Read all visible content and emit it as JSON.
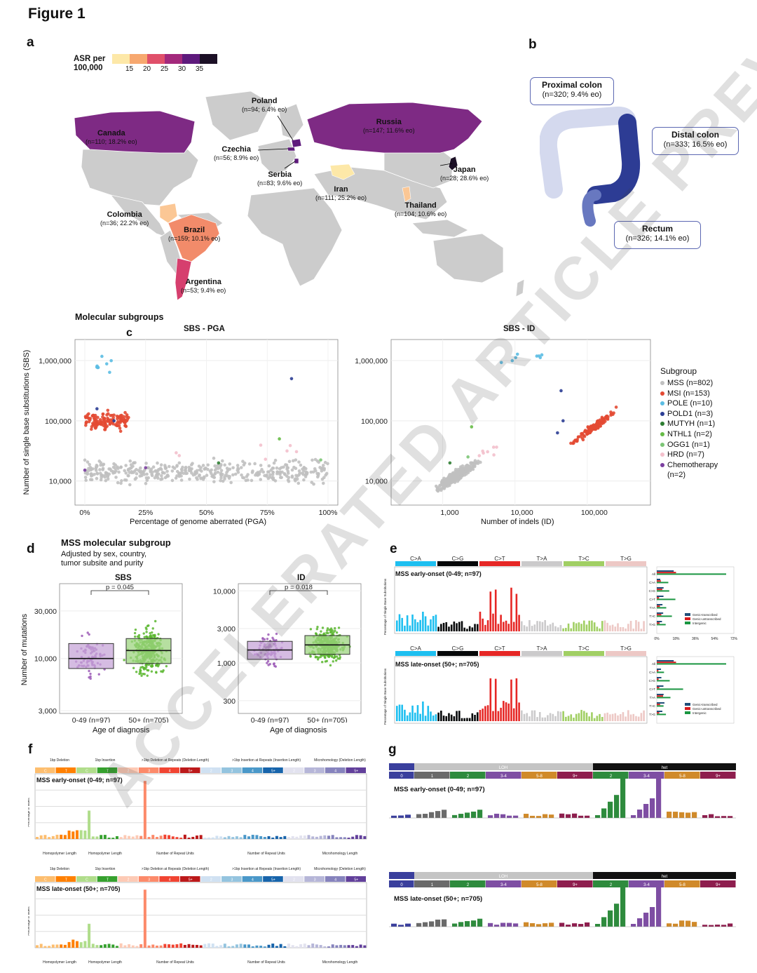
{
  "figure_title": "Figure 1",
  "panels": {
    "a": "a",
    "b": "b",
    "c": "c",
    "d": "d",
    "e": "e",
    "f": "f",
    "g": "g"
  },
  "colors": {
    "map_default": "#cccccc",
    "asr_scale": [
      "#fde8a8",
      "#f7a86f",
      "#e0506a",
      "#a3297c",
      "#5e1a7c",
      "#1c1026"
    ],
    "mss": "#c0c0c0",
    "msi": "#e34a33",
    "pole": "#5bbde3",
    "pold1": "#2c3e95",
    "mutyh": "#2e7d32",
    "nthl1": "#66bb46",
    "ogg1": "#7cc576",
    "hrd": "#f3c0cc",
    "chemo": "#7b3fa0"
  },
  "map_legend": {
    "title_line1": "ASR per",
    "title_line2": "100,000",
    "ticks": [
      "15",
      "20",
      "25",
      "30",
      "35"
    ]
  },
  "countries": [
    {
      "name": "Canada",
      "detail": "(n=110; 18.2% eo)"
    },
    {
      "name": "Poland",
      "detail": "(n=94; 6.4% eo)"
    },
    {
      "name": "Russia",
      "detail": "(n=147; 11.6% eo)"
    },
    {
      "name": "Czechia",
      "detail": "(n=56; 8.9% eo)"
    },
    {
      "name": "Serbia",
      "detail": "(n=83; 9.6% eo)"
    },
    {
      "name": "Japan",
      "detail": "(n=28; 28.6% eo)"
    },
    {
      "name": "Iran",
      "detail": "(n=111; 25.2% eo)"
    },
    {
      "name": "Thailand",
      "detail": "(n=104; 10.6% eo)"
    },
    {
      "name": "Colombia",
      "detail": "(n=36; 22.2% eo)"
    },
    {
      "name": "Brazil",
      "detail": "(n=159; 10.1% eo)"
    },
    {
      "name": "Argentina",
      "detail": "(n=53; 9.4% eo)"
    }
  ],
  "sites": [
    {
      "name": "Proximal colon",
      "detail": "(n=320; 9.4% eo)"
    },
    {
      "name": "Distal colon",
      "detail": "(n=333; 16.5% eo)"
    },
    {
      "name": "Rectum",
      "detail": "(n=326; 14.1% eo)"
    }
  ],
  "panel_c": {
    "heading": "Molecular subgroups",
    "left_title": "SBS - PGA",
    "right_title": "SBS - ID",
    "ylabel": "Number of single base substitutions (SBS)",
    "left_xlabel": "Percentage of genome aberrated (PGA)",
    "right_xlabel": "Number of indels (ID)",
    "y_ticks": [
      "1,000,000",
      "100,000",
      "10,000"
    ],
    "left_x_ticks": [
      "0%",
      "25%",
      "50%",
      "75%",
      "100%"
    ],
    "right_x_ticks": [
      "1,000",
      "10,000",
      "100,000"
    ],
    "legend_title": "Subgroup",
    "legend": [
      {
        "label": "MSS (n=802)",
        "color": "#c0c0c0"
      },
      {
        "label": "MSI (n=153)",
        "color": "#e34a33"
      },
      {
        "label": "POLE (n=10)",
        "color": "#5bbde3"
      },
      {
        "label": "POLD1 (n=3)",
        "color": "#2c3e95"
      },
      {
        "label": "MUTYH (n=1)",
        "color": "#2e7d32"
      },
      {
        "label": "NTHL1 (n=2)",
        "color": "#66bb46"
      },
      {
        "label": "OGG1 (n=1)",
        "color": "#7cc576"
      },
      {
        "label": "HRD (n=7)",
        "color": "#f3c0cc"
      },
      {
        "label": "Chemotherapy (n=2)",
        "color": "#7b3fa0"
      }
    ]
  },
  "panel_d": {
    "title": "MSS molecular subgroup",
    "subtitle_1": "Adjusted by sex, country,",
    "subtitle_2": "tumor subsite and purity",
    "ylabel": "Number of mutations",
    "xlabel": "Age of diagnosis",
    "sbs": {
      "title": "SBS",
      "p": "p = 0.045",
      "y_ticks": [
        "30,000",
        "10,000",
        "3,000"
      ],
      "groups": [
        "0-49 (n=97)",
        "50+ (n=705)"
      ]
    },
    "id": {
      "title": "ID",
      "p": "p = 0.018",
      "y_ticks": [
        "10,000",
        "3,000",
        "1,000",
        "300"
      ],
      "groups": [
        "0-49 (n=97)",
        "50+ (n=705)"
      ]
    }
  },
  "panel_e": {
    "classes": [
      "C>A",
      "C>G",
      "C>T",
      "T>A",
      "T>C",
      "T>G"
    ],
    "class_colors": [
      "#1ebff0",
      "#050708",
      "#e62725",
      "#cbcacb",
      "#a1cf64",
      "#edc8c5"
    ],
    "early_title": "MSS early-onset (0-49; n=97)",
    "late_title": "MSS late-onset (50+; n=705)",
    "ylabel": "Percentage of Single Base Substitutions",
    "side_legend": [
      "Genic-transcribed",
      "Genic-untranscribed",
      "Intergenic"
    ],
    "side_ticks": [
      "0%",
      "18%",
      "36%",
      "54%",
      "72%"
    ],
    "side_rows": [
      "All",
      "C>A",
      "C>G",
      "C>T",
      "T>A",
      "T>C",
      "T>G"
    ]
  },
  "panel_f": {
    "headers": [
      "1bp Deletion",
      "1bp Insertion",
      ">1bp Deletion at Repeats (Deletion Length)",
      ">1bp Insertion at Repeats (Insertion Length)",
      "Microhomology (Deletion Length)"
    ],
    "early_title": "MSS early-onset (0-49; n=97)",
    "late_title": "MSS late-onset (50+; n=705)",
    "bottom_labels": [
      "Homopolymer Length",
      "Homopolymer Length",
      "Number of Repeat Units",
      "Number of Repeat Units",
      "Microhomology Length"
    ],
    "ylabel": "Percentage of Indels"
  },
  "panel_g": {
    "top_groups": [
      "LOH",
      "het"
    ],
    "sub_groups": [
      "0",
      "1",
      "2",
      "3-4",
      "5-8",
      "9+",
      "2",
      "3-4",
      "5-8",
      "9+"
    ],
    "early_title": "MSS early-onset (0-49; n=97)",
    "late_title": "MSS late-onset (50+; n=705)"
  },
  "watermark": "ACCELERATED ARTICLE PREVIEW"
}
